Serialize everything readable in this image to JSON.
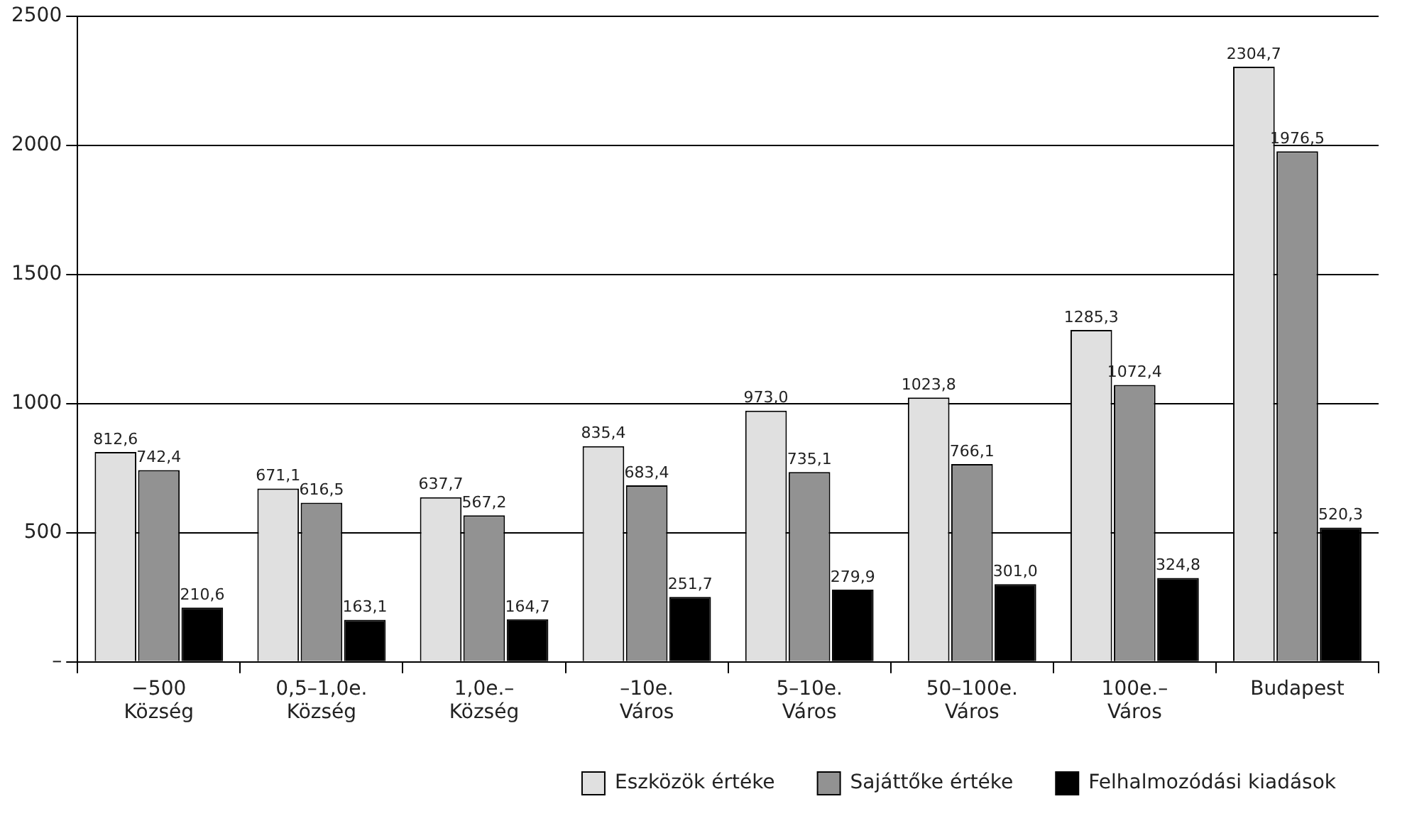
{
  "chart_data": {
    "type": "bar",
    "categories": [
      "−500\nKözség",
      "0,5–1,0e.\nKözség",
      "1,0e.–\nKözség",
      "–10e.\nVáros",
      "5–10e.\nVáros",
      "50–100e.\nVáros",
      "100e.–\nVáros",
      "Budapest"
    ],
    "series": [
      {
        "name": "Eszközök értéke",
        "color": "#e0e0e0",
        "values": [
          812.6,
          671.1,
          637.7,
          835.4,
          973.0,
          1023.8,
          1285.3,
          2304.7
        ],
        "value_labels": [
          "812,6",
          "671,1",
          "637,7",
          "835,4",
          "973,0",
          "1023,8",
          "1285,3",
          "2304,7"
        ]
      },
      {
        "name": "Sajáttőke értéke",
        "color": "#929292",
        "values": [
          742.4,
          616.5,
          567.2,
          683.4,
          735.1,
          766.1,
          1072.4,
          1976.5
        ],
        "value_labels": [
          "742,4",
          "616,5",
          "567,2",
          "683,4",
          "735,1",
          "766,1",
          "1072,4",
          "1976,5"
        ]
      },
      {
        "name": "Felhalmozódási kiadások",
        "color": "#000000",
        "values": [
          210.6,
          163.1,
          164.7,
          251.7,
          279.9,
          301.0,
          324.8,
          520.3
        ],
        "value_labels": [
          "210,6",
          "163,1",
          "164,7",
          "251,7",
          "279,9",
          "301,0",
          "324,8",
          "520,3"
        ]
      }
    ],
    "ylim": [
      0,
      2500
    ],
    "yticks": [
      {
        "value": 0,
        "label": "–"
      },
      500,
      1000,
      1500,
      2000,
      2500
    ],
    "grid": "y",
    "legend": "bottom"
  }
}
